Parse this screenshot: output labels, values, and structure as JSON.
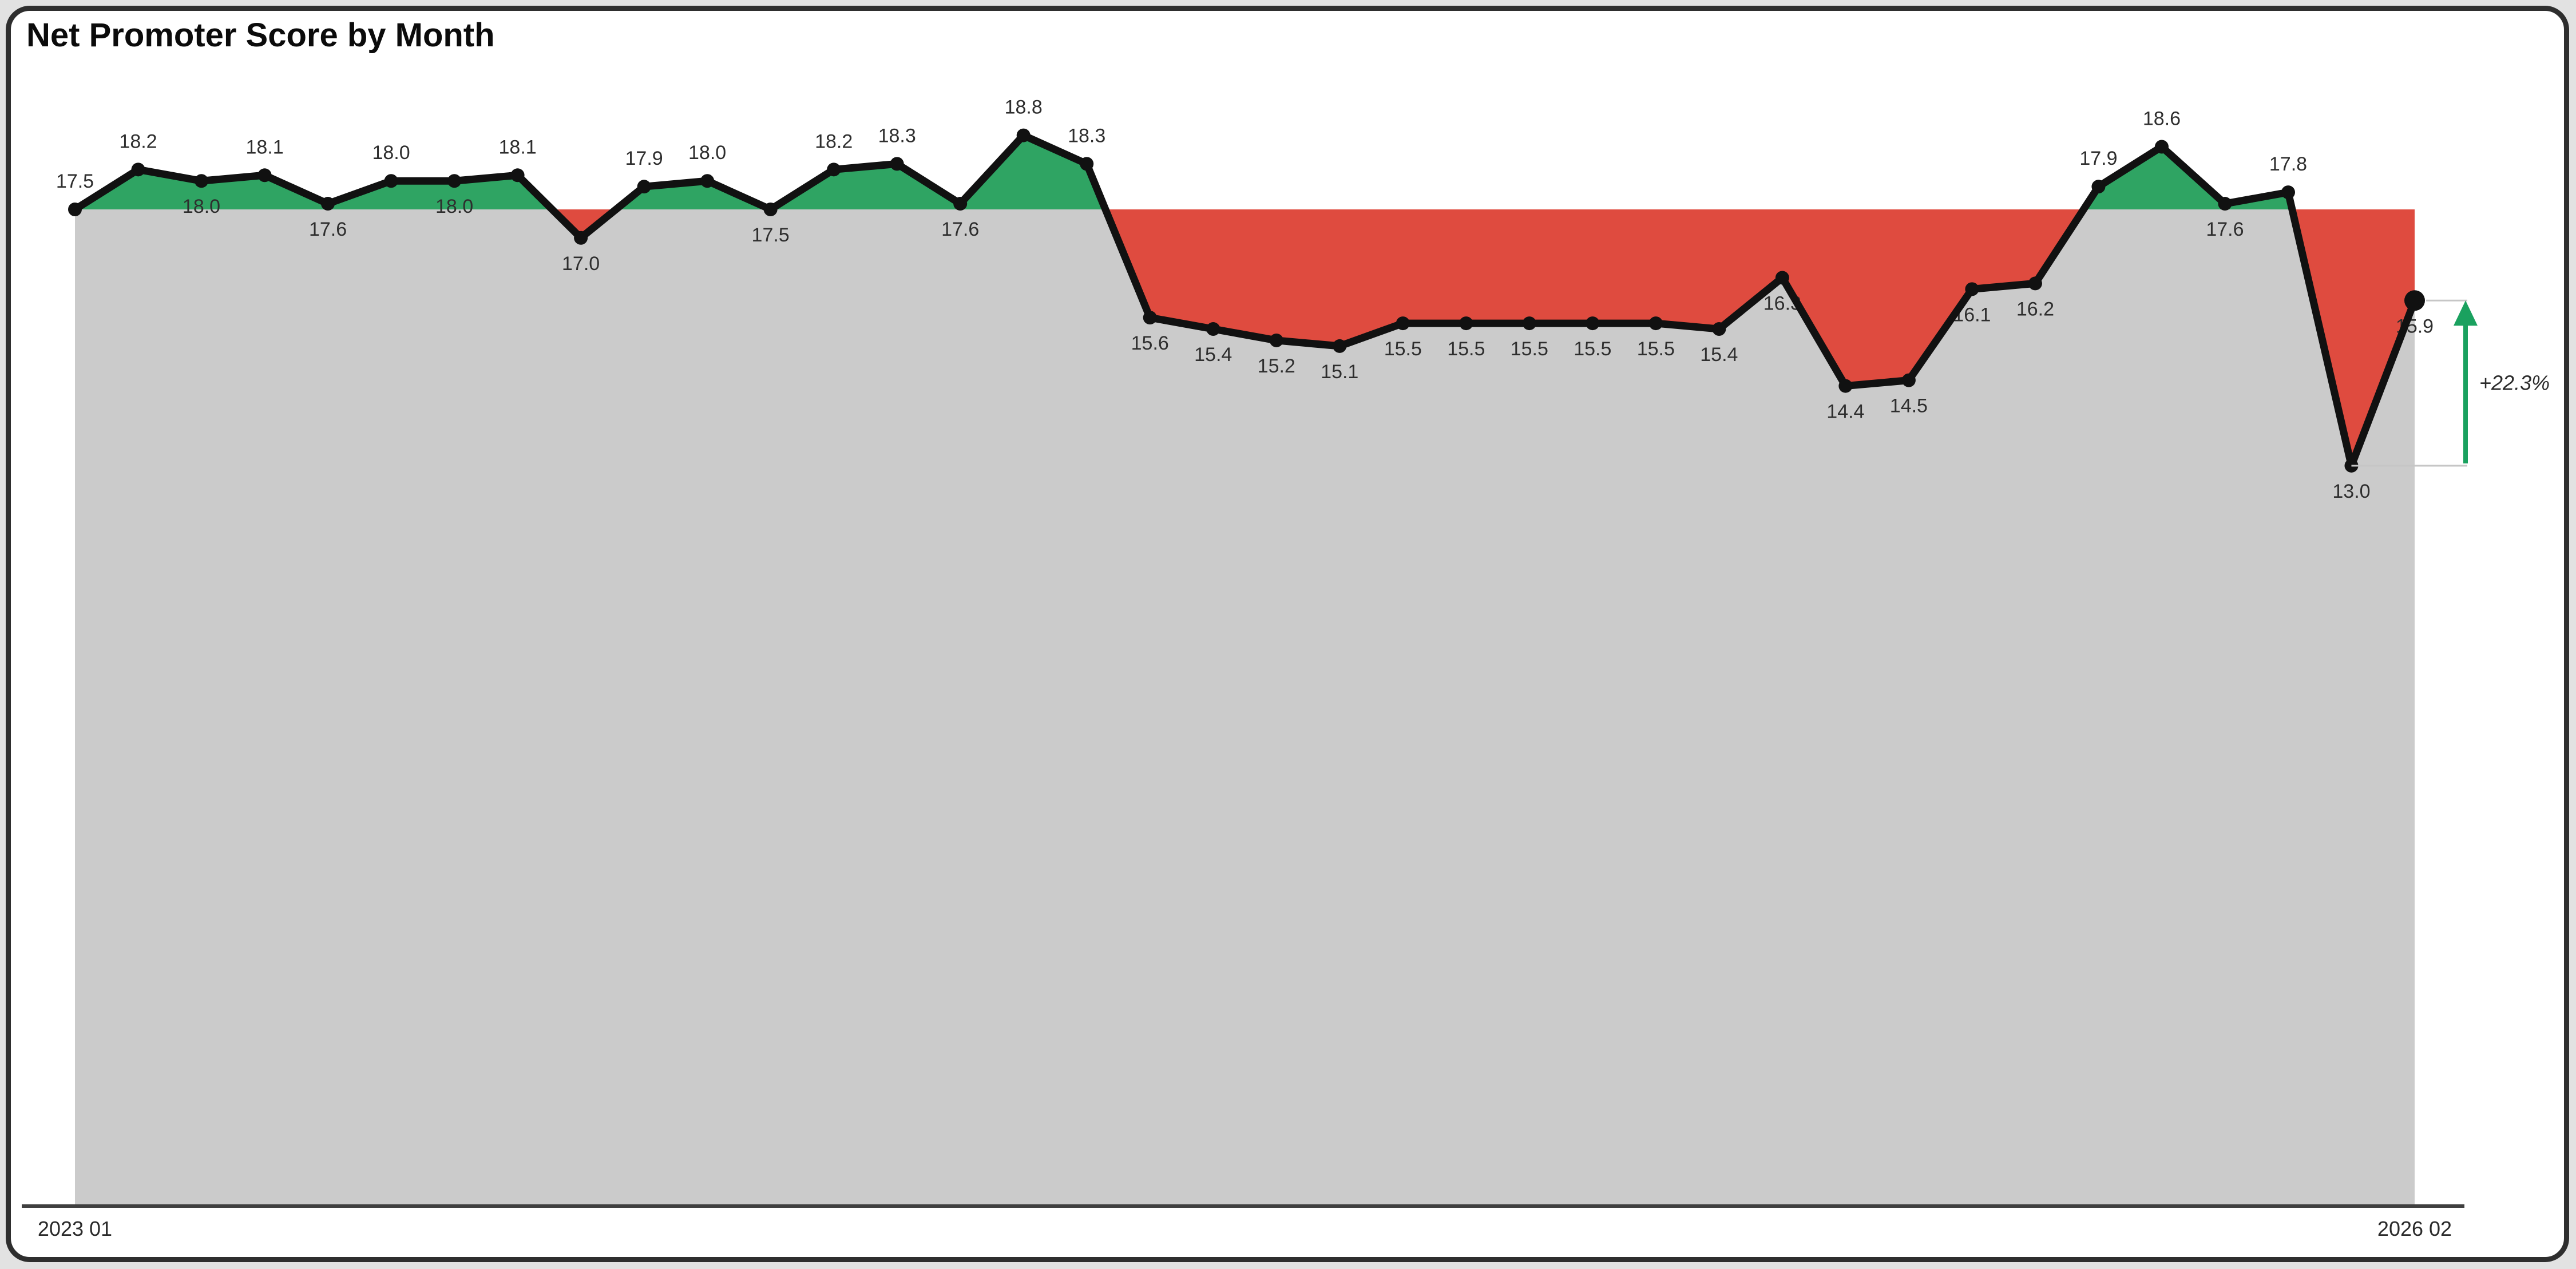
{
  "page": {
    "background": "#e2e2e2",
    "card": {
      "background": "#ffffff",
      "border_color": "#2e2e2e"
    }
  },
  "header": {
    "title": "Net Promoter Score by Month"
  },
  "chart_data": {
    "type": "area",
    "title": "Net Promoter Score by Month",
    "baseline": 17.5,
    "ylim": [
      0,
      21
    ],
    "grid": false,
    "legend": false,
    "x_axis": {
      "start_label": "2023 01",
      "end_label": "2026 02",
      "n_points": 38
    },
    "values": [
      17.5,
      18.2,
      18.0,
      18.1,
      17.6,
      18.0,
      18.0,
      18.1,
      17.0,
      17.9,
      18.0,
      17.5,
      18.2,
      18.3,
      17.6,
      18.8,
      18.3,
      15.6,
      15.4,
      15.2,
      15.1,
      15.5,
      15.5,
      15.5,
      15.5,
      15.5,
      15.4,
      16.3,
      14.4,
      14.5,
      16.1,
      16.2,
      17.9,
      18.6,
      17.6,
      17.8,
      13.0,
      15.9
    ],
    "label_positions": [
      "above",
      "above",
      "below",
      "above",
      "below",
      "above",
      "below",
      "above",
      "below",
      "above",
      "above",
      "below",
      "above",
      "above",
      "below",
      "above",
      "above",
      "below",
      "below",
      "below",
      "below",
      "below",
      "below",
      "below",
      "below",
      "below",
      "below",
      "below",
      "below",
      "below",
      "below",
      "below",
      "above",
      "above",
      "below",
      "above",
      "below",
      "below"
    ],
    "colors": {
      "above_baseline_fill": "#2FA463",
      "below_baseline_fill": "#DF4B3F",
      "under_line_fill": "#CBCBCB",
      "line": "#111111",
      "marker": "#111111",
      "axis_line": "#3f3f3f",
      "data_label": "#2e2e2e",
      "axis_label": "#2b2b2b",
      "bracket": "#c6c6c6",
      "arrow": "#1AA15F",
      "annotation_text": "#2b2b2b"
    },
    "annotation": {
      "text": "+22.3%",
      "from_value": 13.0,
      "to_value": 15.9
    }
  }
}
